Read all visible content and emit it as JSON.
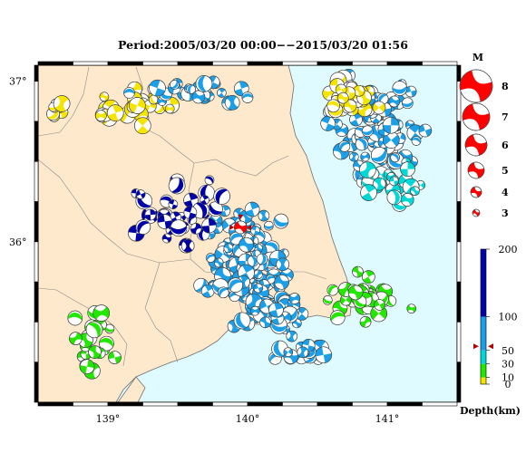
{
  "title": "Period:2005/03/20 00:00−−2015/03/20 01:56",
  "map": {
    "lat_range": [
      35.0,
      37.1
    ],
    "lon_range": [
      138.5,
      141.5
    ],
    "lat_ticks": [
      {
        "label": "37°",
        "value": 37
      },
      {
        "label": "36°",
        "value": 36
      }
    ],
    "lon_ticks": [
      {
        "label": "139°",
        "value": 139
      },
      {
        "label": "140°",
        "value": 140
      },
      {
        "label": "141°",
        "value": 141
      }
    ],
    "colors": {
      "land": "#ffe9cc",
      "sea": "#dffbff",
      "frame": "#000000"
    },
    "main_event": {
      "lon": 139.95,
      "lat": 36.09,
      "color": "#ff0000"
    }
  },
  "magnitude_legend": {
    "title": "M",
    "items": [
      {
        "label": "8",
        "value": 8
      },
      {
        "label": "7",
        "value": 7
      },
      {
        "label": "6",
        "value": 6
      },
      {
        "label": "5",
        "value": 5
      },
      {
        "label": "4",
        "value": 4
      },
      {
        "label": "3",
        "value": 3
      }
    ]
  },
  "depth_scale": {
    "label": "Depth(km)",
    "ticks": [
      {
        "label": "200",
        "value": 200
      },
      {
        "label": "100",
        "value": 100
      },
      {
        "label": "50",
        "value": 50
      },
      {
        "label": "30",
        "value": 30
      },
      {
        "label": "10",
        "value": 10
      },
      {
        "label": "0",
        "value": 0
      }
    ],
    "bands": [
      {
        "from": 0,
        "to": 10,
        "color": "#f5e400"
      },
      {
        "from": 10,
        "to": 30,
        "color": "#22e800"
      },
      {
        "from": 30,
        "to": 50,
        "color": "#00d8d8"
      },
      {
        "from": 50,
        "to": 100,
        "color": "#1a9fe8"
      },
      {
        "from": 100,
        "to": 200,
        "color": "#0000a8"
      }
    ],
    "main_event_depth": 56
  }
}
